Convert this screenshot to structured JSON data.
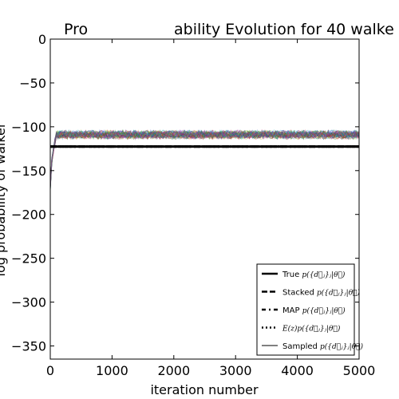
{
  "chart_data": {
    "type": "line",
    "title_parts": [
      "Pro",
      "ability Evolution for 40 walke"
    ],
    "xlabel": "iteration number",
    "ylabel": "log probability of walker",
    "xlim": [
      0,
      5000
    ],
    "ylim": [
      -365,
      0
    ],
    "xticks": [
      0,
      1000,
      2000,
      3000,
      4000,
      5000
    ],
    "yticks": [
      0,
      -50,
      -100,
      -150,
      -200,
      -250,
      -300,
      -350
    ],
    "ytick_labels": [
      "0",
      "−50",
      "−100",
      "−150",
      "−200",
      "−250",
      "−300",
      "−350"
    ],
    "grid": false,
    "walkers": {
      "count": 40,
      "start_value": -170,
      "burn_in_end_iteration": 100,
      "plateau_mean": -109,
      "plateau_spread": 4,
      "colors": [
        "#1f3fbf",
        "#2a9d2a",
        "#d62728",
        "#17a6b8",
        "#b52bb5",
        "#b8b217",
        "#333333"
      ]
    },
    "reference_lines": [
      {
        "key": "true",
        "value": -122.5,
        "style": "solid"
      },
      {
        "key": "stacked",
        "value": -122.5,
        "style": "dashed"
      },
      {
        "key": "map",
        "value": -122.5,
        "style": "dashdot"
      },
      {
        "key": "expected",
        "value": -122.5,
        "style": "dotted"
      }
    ],
    "legend": {
      "placement": "lower-right",
      "entries": [
        {
          "style": "solid-thick",
          "label": "True",
          "math": "p({d⃗ⱼ}ⱼ|θ⃗)"
        },
        {
          "style": "dashed",
          "label": "Stacked",
          "math": "p({d⃗ⱼ}ⱼ|θ⃗)"
        },
        {
          "style": "dashdot",
          "label": "MAP",
          "math": "p({d⃗ⱼ}ⱼ|θ⃗)"
        },
        {
          "style": "dotted",
          "label": "",
          "math": "E(z)p({d⃗ⱼ}ⱼ|θ⃗)"
        },
        {
          "style": "solid-thin",
          "label": "Sampled",
          "math": "p({d⃗ⱼ}ⱼ|θ⃗)"
        }
      ]
    }
  }
}
